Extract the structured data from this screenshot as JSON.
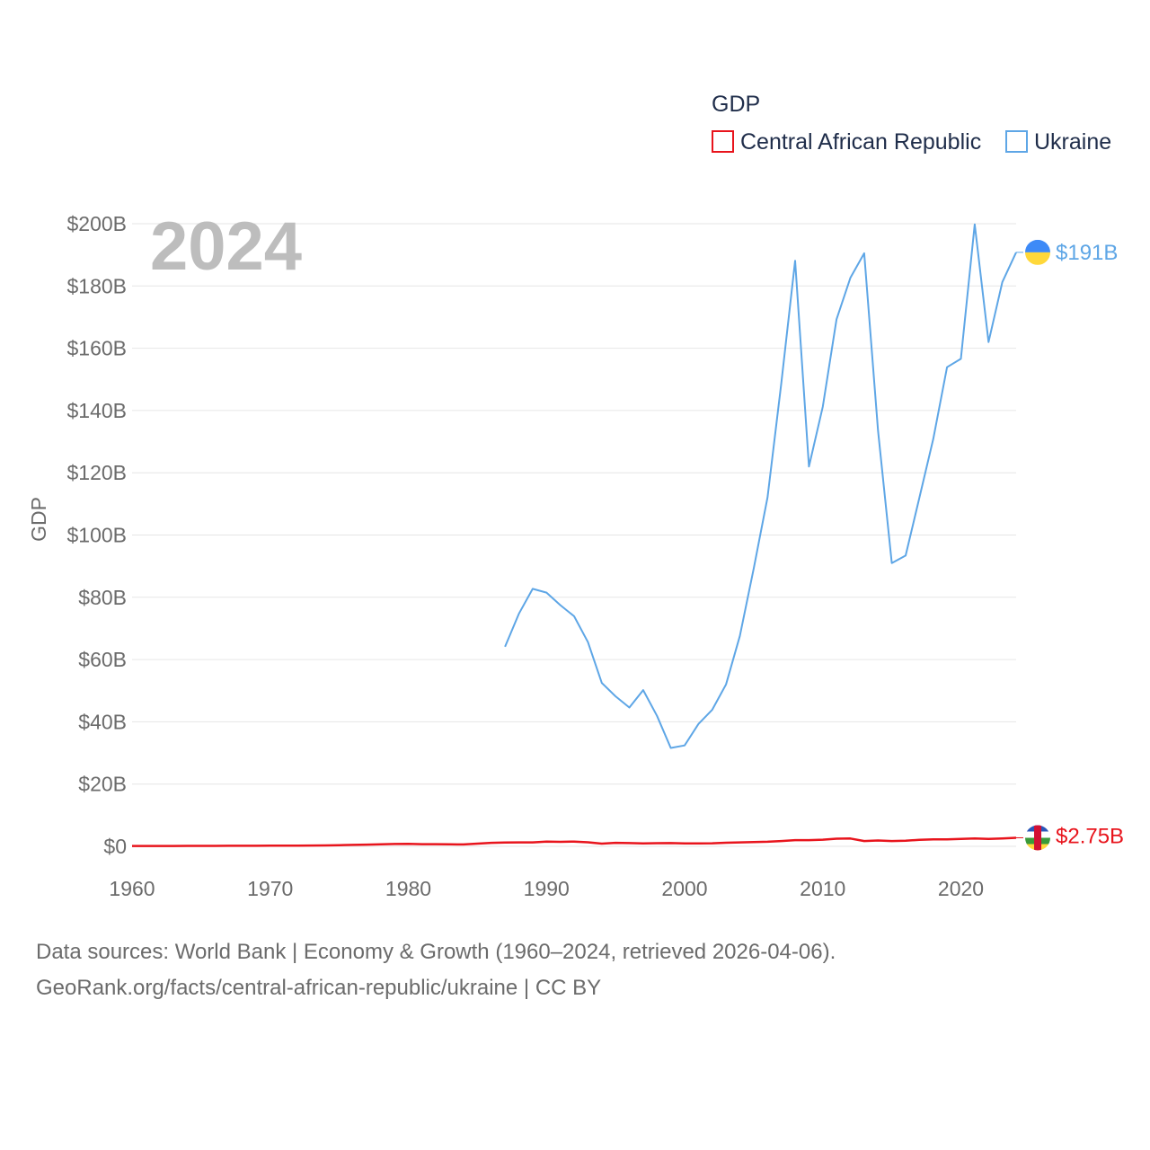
{
  "legend": {
    "title": "GDP",
    "items": [
      {
        "label": "Central African Republic",
        "color": "#e8141c"
      },
      {
        "label": "Ukraine",
        "color": "#5ea6e6"
      }
    ]
  },
  "year_label": "2024",
  "ylabel": "GDP",
  "source": {
    "line1": "Data sources: World Bank | Economy & Growth (1960–2024, retrieved 2026-04-06).",
    "line2": "GeoRank.org/facts/central-african-republic/ukraine | CC BY"
  },
  "chart_data": {
    "type": "line",
    "title": "GDP",
    "xlabel": "",
    "ylabel": "GDP",
    "xlim": [
      1960,
      2024
    ],
    "ylim": [
      0,
      200
    ],
    "x_ticks": [
      1960,
      1970,
      1980,
      1990,
      2000,
      2010,
      2020
    ],
    "y_ticks": [
      0,
      20,
      40,
      60,
      80,
      100,
      120,
      140,
      160,
      180,
      200
    ],
    "y_tick_labels": [
      "$0",
      "$20B",
      "$40B",
      "$60B",
      "$80B",
      "$100B",
      "$120B",
      "$140B",
      "$160B",
      "$180B",
      "$200B"
    ],
    "grid": true,
    "series": [
      {
        "name": "Central African Republic",
        "color": "#e8141c",
        "end_label": "$2.75B",
        "flag": "central-african-republic-flag-icon",
        "x": [
          1960,
          1961,
          1962,
          1963,
          1964,
          1965,
          1966,
          1967,
          1968,
          1969,
          1970,
          1971,
          1972,
          1973,
          1974,
          1975,
          1976,
          1977,
          1978,
          1979,
          1980,
          1981,
          1982,
          1983,
          1984,
          1985,
          1986,
          1987,
          1988,
          1989,
          1990,
          1991,
          1992,
          1993,
          1994,
          1995,
          1996,
          1997,
          1998,
          1999,
          2000,
          2001,
          2002,
          2003,
          2004,
          2005,
          2006,
          2007,
          2008,
          2009,
          2010,
          2011,
          2012,
          2013,
          2014,
          2015,
          2016,
          2017,
          2018,
          2019,
          2020,
          2021,
          2022,
          2023,
          2024
        ],
        "values": [
          0.11,
          0.11,
          0.12,
          0.12,
          0.13,
          0.14,
          0.15,
          0.16,
          0.17,
          0.18,
          0.19,
          0.2,
          0.22,
          0.26,
          0.29,
          0.37,
          0.45,
          0.55,
          0.64,
          0.74,
          0.8,
          0.7,
          0.69,
          0.64,
          0.6,
          0.87,
          1.12,
          1.21,
          1.26,
          1.26,
          1.49,
          1.43,
          1.52,
          1.31,
          0.86,
          1.12,
          1.03,
          0.95,
          1.01,
          1.05,
          0.91,
          0.93,
          0.99,
          1.14,
          1.27,
          1.35,
          1.47,
          1.7,
          1.98,
          2.0,
          2.14,
          2.44,
          2.52,
          1.69,
          1.89,
          1.7,
          1.83,
          2.07,
          2.22,
          2.22,
          2.38,
          2.53,
          2.38,
          2.55,
          2.75
        ]
      },
      {
        "name": "Ukraine",
        "color": "#5ea6e6",
        "end_label": "$191B",
        "flag": "ukraine-flag-icon",
        "x": [
          1987,
          1988,
          1989,
          1990,
          1991,
          1992,
          1993,
          1994,
          1995,
          1996,
          1997,
          1998,
          1999,
          2000,
          2001,
          2002,
          2003,
          2004,
          2005,
          2006,
          2007,
          2008,
          2009,
          2010,
          2011,
          2012,
          2013,
          2014,
          2015,
          2016,
          2017,
          2018,
          2019,
          2020,
          2021,
          2022,
          2023,
          2024
        ],
        "values": [
          64.1,
          74.7,
          82.7,
          81.5,
          77.5,
          73.9,
          65.6,
          52.5,
          48.2,
          44.6,
          50.2,
          41.9,
          31.6,
          32.4,
          39.3,
          43.9,
          52.0,
          67.6,
          89.2,
          112.1,
          148.7,
          188.1,
          122.0,
          141.2,
          169.3,
          182.6,
          190.5,
          133.5,
          91.0,
          93.4,
          112.1,
          130.9,
          153.9,
          156.6,
          199.8,
          162.0,
          181.2,
          190.8
        ]
      }
    ]
  }
}
